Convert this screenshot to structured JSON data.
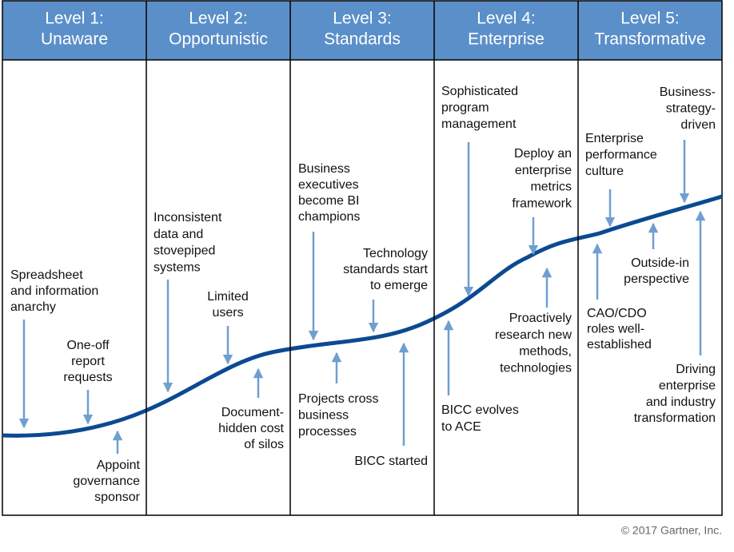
{
  "levels": [
    {
      "number": "Level 1:",
      "name": "Unaware",
      "notes": [
        {
          "lines": [
            "Spreadsheet",
            "and information",
            "anarchy"
          ]
        },
        {
          "lines": [
            "One-off",
            "report",
            "requests"
          ]
        },
        {
          "lines": [
            "Appoint",
            "governance",
            "sponsor"
          ]
        }
      ]
    },
    {
      "number": "Level 2:",
      "name": "Opportunistic",
      "notes": [
        {
          "lines": [
            "Inconsistent",
            "data and",
            "stovepiped",
            "systems"
          ]
        },
        {
          "lines": [
            "Limited",
            "users"
          ]
        },
        {
          "lines": [
            "Document-",
            "hidden cost",
            "of silos"
          ]
        }
      ]
    },
    {
      "number": "Level 3:",
      "name": "Standards",
      "notes": [
        {
          "lines": [
            "Business",
            "executives",
            "become BI",
            "champions"
          ]
        },
        {
          "lines": [
            "Technology",
            "standards start",
            "to emerge"
          ]
        },
        {
          "lines": [
            "Projects cross",
            "business",
            "processes"
          ]
        },
        {
          "lines": [
            "BICC started"
          ]
        }
      ]
    },
    {
      "number": "Level 4:",
      "name": "Enterprise",
      "notes": [
        {
          "lines": [
            "Sophisticated",
            "program",
            "management"
          ]
        },
        {
          "lines": [
            "Deploy an",
            "enterprise",
            "metrics",
            "framework"
          ]
        },
        {
          "lines": [
            "Proactively",
            "research new",
            "methods,",
            "technologies"
          ]
        },
        {
          "lines": [
            "BICC evolves",
            "to ACE"
          ]
        }
      ]
    },
    {
      "number": "Level 5:",
      "name": "Transformative",
      "notes": [
        {
          "lines": [
            "Business-",
            "strategy-",
            "driven"
          ]
        },
        {
          "lines": [
            "Enterprise",
            "performance",
            "culture"
          ]
        },
        {
          "lines": [
            "Outside-in",
            "perspective"
          ]
        },
        {
          "lines": [
            "CAO/CDO",
            "roles well-",
            "established"
          ]
        },
        {
          "lines": [
            "Driving",
            "enterprise",
            "and industry",
            "transformation"
          ]
        }
      ]
    }
  ],
  "copyright": "© 2017 Gartner, Inc."
}
